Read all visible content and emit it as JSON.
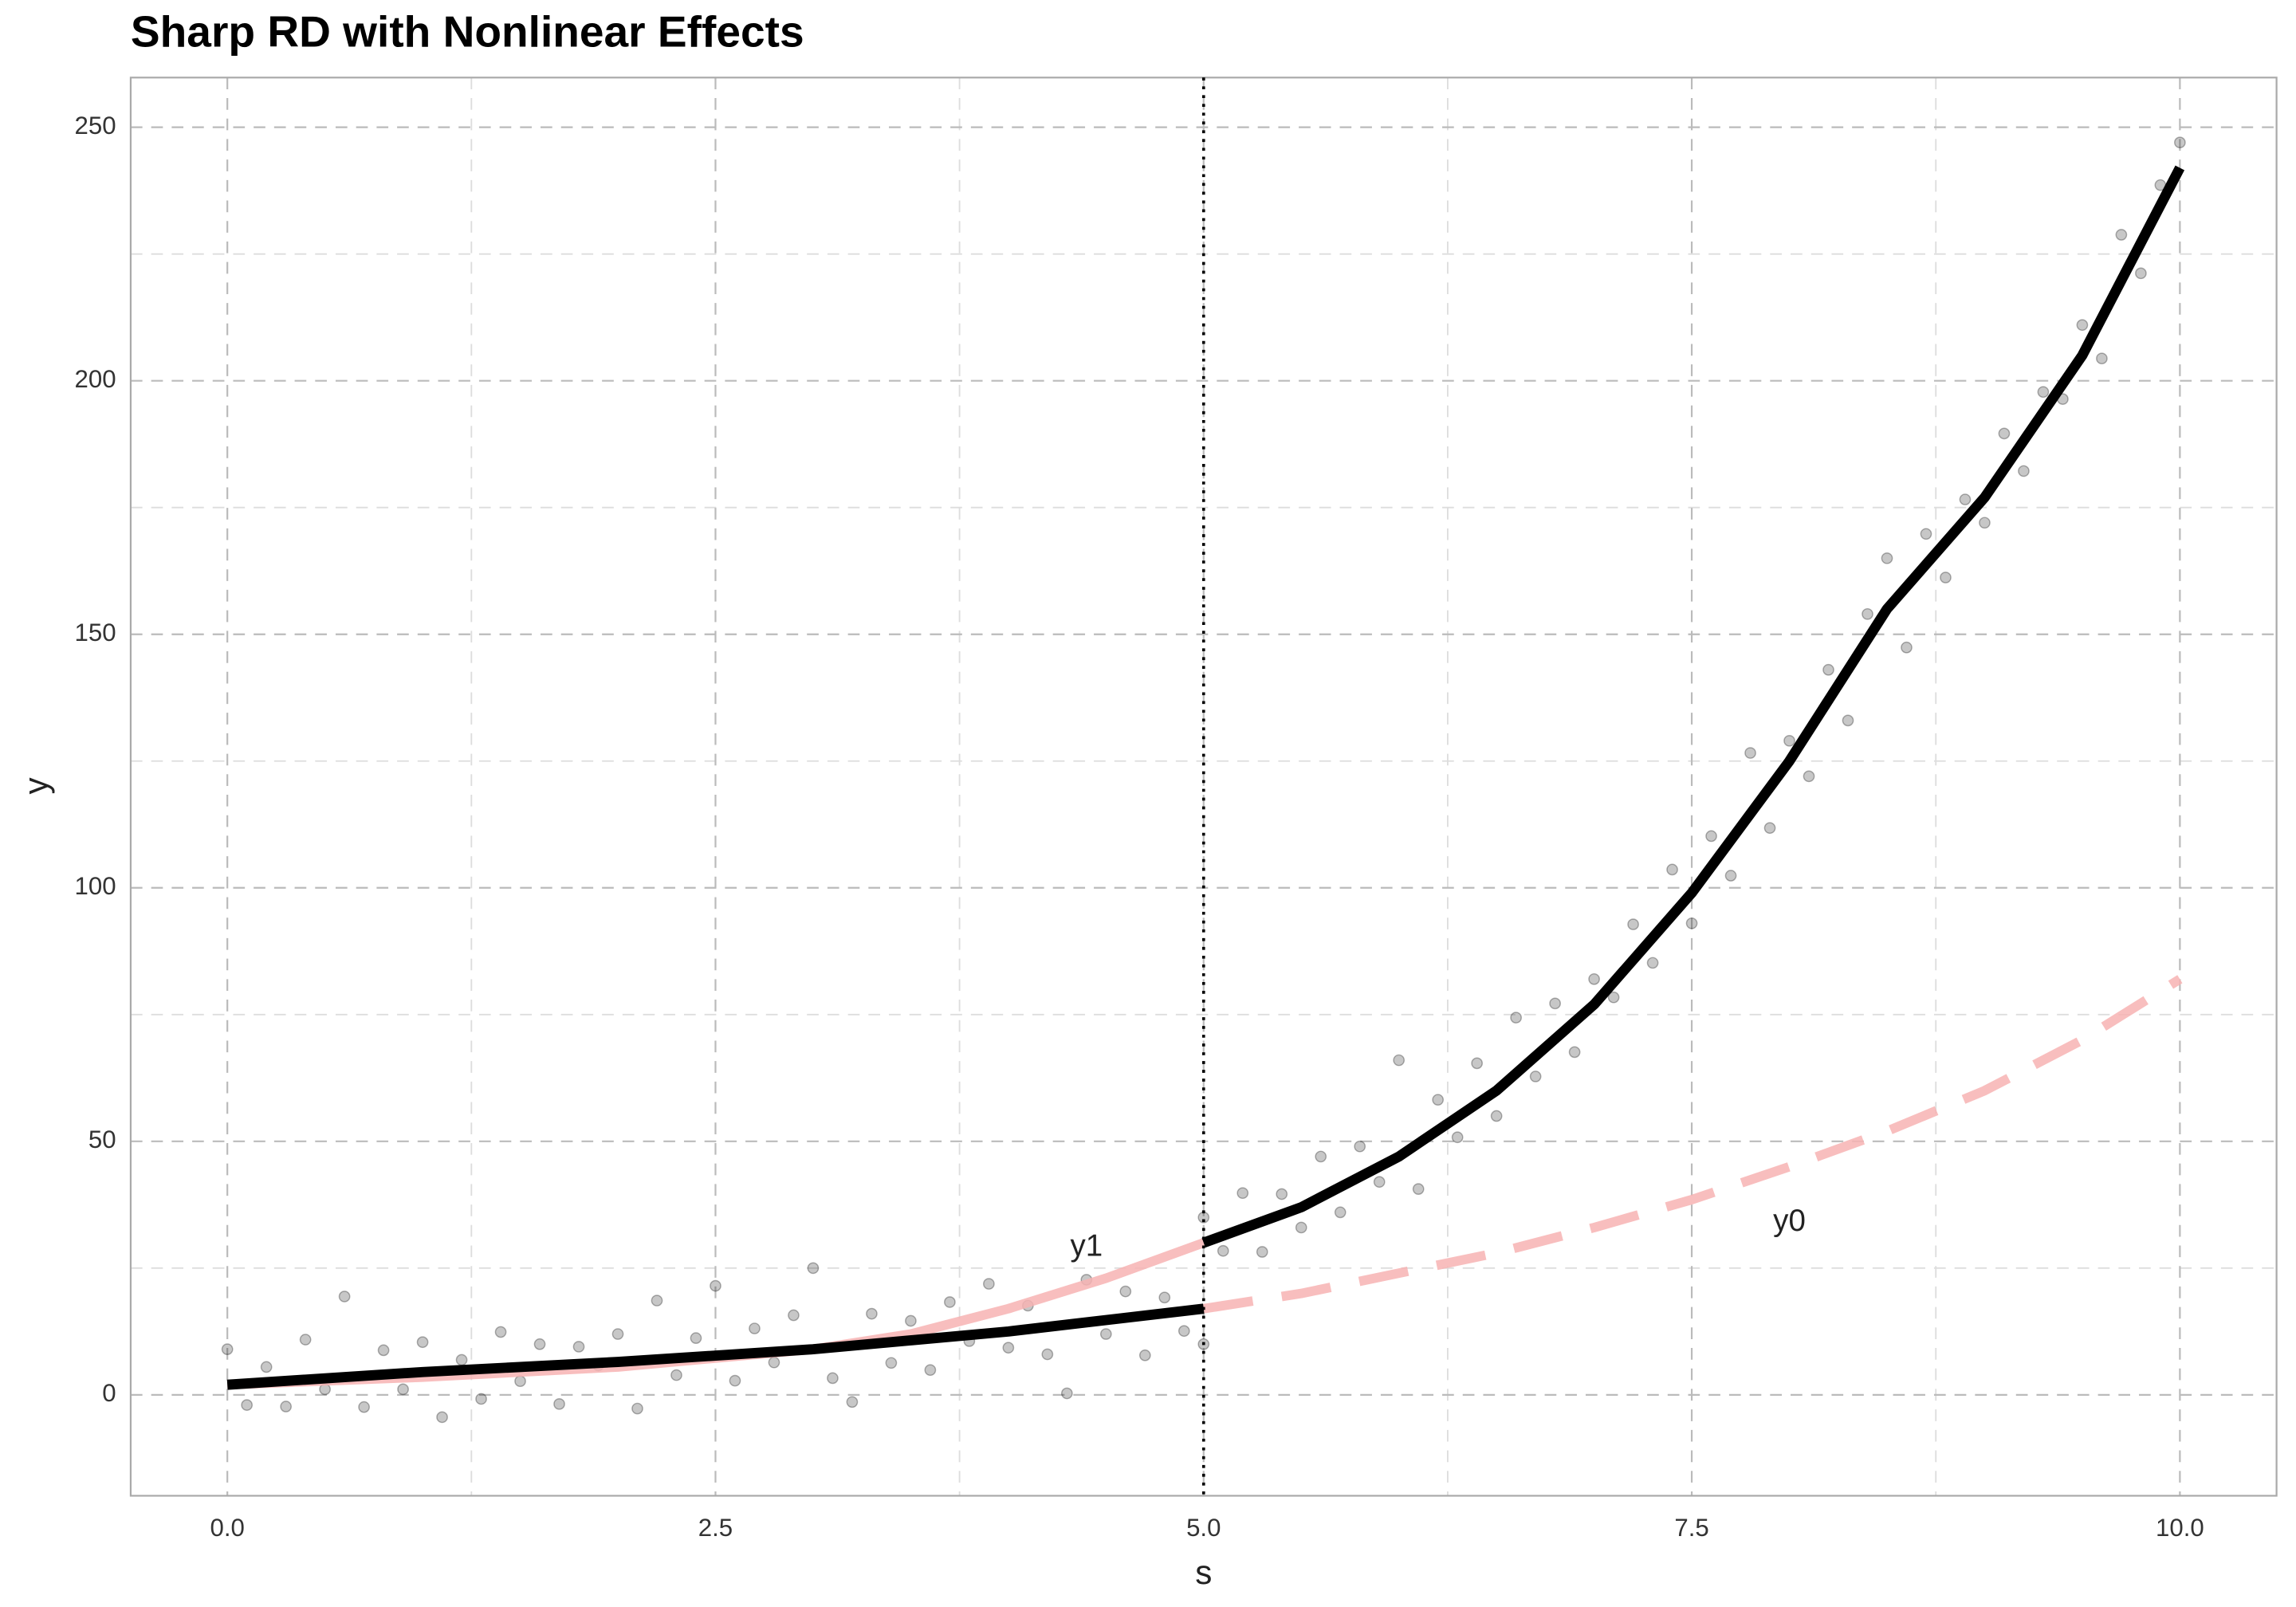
{
  "chart_data": {
    "type": "scatter",
    "title": "Sharp RD with Nonlinear Effects",
    "x_label": "s",
    "y_label": "y",
    "xlim": [
      -0.495,
      10.495
    ],
    "ylim": [
      -19.9,
      259.8
    ],
    "xticks": [
      {
        "value": 0,
        "label": "0.0"
      },
      2.5,
      {
        "value": 5,
        "label": "5.0"
      },
      7.5,
      {
        "value": 10,
        "label": "10.0"
      }
    ],
    "yticks": [
      0,
      50,
      100,
      150,
      200,
      250
    ],
    "grid": true,
    "minor_grid": true,
    "vline": 5,
    "annotations": [
      {
        "text": "y1",
        "x": 4.4,
        "y": 29
      },
      {
        "text": "y0",
        "x": 8.0,
        "y": 34
      }
    ],
    "series": [
      {
        "type": "scatter",
        "color": "#000000",
        "x": [
          0.0,
          0.1,
          0.2,
          0.3,
          0.4,
          0.5,
          0.6,
          0.7,
          0.8,
          0.9,
          1.0,
          1.1,
          1.2,
          1.3,
          1.4,
          1.5,
          1.6,
          1.7,
          1.8,
          1.9,
          2.0,
          2.1,
          2.2,
          2.3,
          2.4,
          2.5,
          2.6,
          2.7,
          2.8,
          2.9,
          3.0,
          3.1,
          3.2,
          3.3,
          3.4,
          3.5,
          3.6,
          3.7,
          3.8,
          3.9,
          4.0,
          4.1,
          4.2,
          4.3,
          4.4,
          4.5,
          4.6,
          4.7,
          4.8,
          4.9,
          5.0,
          5.0,
          5.1,
          5.2,
          5.3,
          5.4,
          5.5,
          5.6,
          5.7,
          5.8,
          5.9,
          6.0,
          6.1,
          6.2,
          6.3,
          6.4,
          6.5,
          6.6,
          6.7,
          6.8,
          6.9,
          7.0,
          7.1,
          7.2,
          7.3,
          7.4,
          7.5,
          7.6,
          7.7,
          7.8,
          7.9,
          8.0,
          8.1,
          8.2,
          8.3,
          8.4,
          8.5,
          8.6,
          8.7,
          8.8,
          8.9,
          9.0,
          9.1,
          9.2,
          9.3,
          9.4,
          9.5,
          9.6,
          9.7,
          9.8,
          9.9,
          10.0
        ],
        "values": [
          9,
          -2,
          5.5,
          -2.3,
          10.9,
          1.1,
          19.4,
          -2.4,
          8.8,
          1.1,
          10.4,
          -4.4,
          6.9,
          -0.8,
          12.4,
          2.7,
          10,
          -1.8,
          9.5,
          5.8,
          12,
          -2.7,
          18.6,
          3.9,
          11.2,
          21.5,
          2.8,
          13.1,
          6.4,
          15.7,
          25,
          3.3,
          -1.4,
          16,
          6.3,
          14.6,
          4.9,
          18.3,
          10.6,
          21.9,
          9.3,
          17.6,
          8,
          0.3,
          22.7,
          12,
          20.4,
          7.8,
          19.2,
          12.6,
          10,
          35,
          28.4,
          39.8,
          28.2,
          39.6,
          33,
          47,
          36,
          49,
          42,
          66,
          40.6,
          58.2,
          50.8,
          65.4,
          55,
          74.4,
          62.8,
          77.2,
          67.6,
          82,
          78.4,
          92.8,
          85.2,
          103.6,
          93,
          110.2,
          102.4,
          126.6,
          111.8,
          129,
          122,
          143,
          133,
          154,
          165,
          147.4,
          169.8,
          161.2,
          176.6,
          172,
          189.6,
          182.2,
          197.8,
          196.4,
          211,
          204.4,
          228.8,
          221.2,
          238.6,
          247
        ]
      },
      {
        "type": "line",
        "color": "#f7b3b3",
        "dash": false,
        "x": [
          0,
          1,
          2,
          3,
          3.5,
          4,
          4.5,
          5
        ],
        "values": [
          2,
          3.5,
          5.5,
          9,
          12,
          17,
          23,
          30
        ]
      },
      {
        "type": "line",
        "color": "#f7b3b3",
        "dash": true,
        "x": [
          5,
          5.5,
          6,
          6.5,
          7,
          7.5,
          8,
          8.5,
          9,
          9.5,
          10
        ],
        "values": [
          17,
          20,
          24,
          28,
          33,
          38.5,
          45,
          52,
          60,
          70,
          82
        ]
      },
      {
        "type": "line",
        "color": "#000000",
        "dash": false,
        "x": [
          0,
          1,
          2,
          3,
          4,
          5
        ],
        "values": [
          2,
          4.5,
          6.5,
          9,
          12.5,
          17
        ]
      },
      {
        "type": "line",
        "color": "#000000",
        "dash": false,
        "x": [
          5,
          5.5,
          6,
          6.5,
          7,
          7.5,
          8,
          8.5,
          9,
          9.5,
          10
        ],
        "values": [
          30,
          37,
          47,
          60,
          77,
          99,
          125,
          155,
          177,
          205,
          242
        ]
      }
    ]
  }
}
